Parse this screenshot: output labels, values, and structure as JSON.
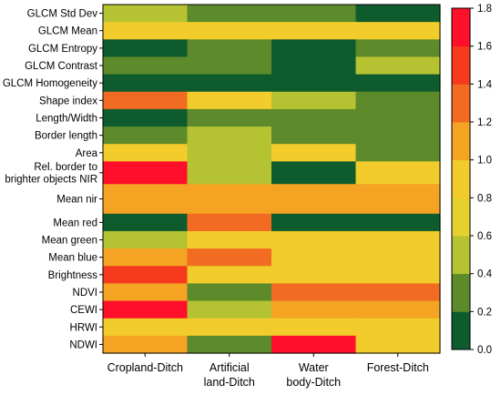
{
  "chart_data": {
    "type": "heatmap",
    "title": "",
    "xlabel": "",
    "ylabel": "",
    "columns": [
      [
        "Cropland-Ditch"
      ],
      [
        "Artificial",
        "land-Ditch"
      ],
      [
        "Water",
        "body-Ditch"
      ],
      [
        "Forest-Ditch"
      ]
    ],
    "rows": [
      [
        "GLCM Std Dev"
      ],
      [
        "GLCM Mean"
      ],
      [
        "GLCM Entropy"
      ],
      [
        "GLCM Contrast"
      ],
      [
        "GLCM Homogeneity"
      ],
      [
        "Shape index"
      ],
      [
        "Length/Width"
      ],
      [
        "Border length"
      ],
      [
        "Area"
      ],
      [
        "Rel. border to",
        "brighter objects NIR"
      ],
      [
        "Mean nir"
      ],
      [
        "Mean red"
      ],
      [
        "Mean green"
      ],
      [
        "Mean blue"
      ],
      [
        "Brightness"
      ],
      [
        "NDVI"
      ],
      [
        "CEWI"
      ],
      [
        "HRWI"
      ],
      [
        "NDWI"
      ]
    ],
    "row_spans": [
      1,
      1,
      1,
      1,
      1,
      1,
      1,
      1,
      1,
      1.3,
      1.7,
      1,
      1,
      1,
      1,
      1,
      1,
      1,
      1
    ],
    "cells": [
      [
        {
          "span": 1,
          "v": 0.5
        },
        {
          "span": 1,
          "v": 0.3
        },
        {
          "span": 1,
          "v": 0.3
        },
        {
          "span": 1,
          "v": 0.1
        }
      ],
      [
        {
          "span": 1,
          "v": 0.9
        },
        {
          "span": 1,
          "v": 0.9
        },
        {
          "span": 1,
          "v": 0.9
        },
        {
          "span": 1,
          "v": 0.9
        }
      ],
      [
        {
          "span": 1,
          "v": 0.1
        },
        {
          "span": 1,
          "v": 0.3
        },
        {
          "span": 1,
          "v": 0.1
        },
        {
          "span": 1,
          "v": 0.3
        }
      ],
      [
        {
          "span": 1,
          "v": 0.3
        },
        {
          "span": 1,
          "v": 0.3
        },
        {
          "span": 1,
          "v": 0.1
        },
        {
          "span": 1,
          "v": 0.5
        }
      ],
      [
        {
          "span": 1,
          "v": 0.1
        },
        {
          "span": 1,
          "v": 0.1
        },
        {
          "span": 1,
          "v": 0.1
        },
        {
          "span": 1,
          "v": 0.1
        }
      ],
      [
        {
          "span": 1,
          "v": 1.3
        },
        {
          "span": 1,
          "v": 0.9
        },
        {
          "span": 1,
          "v": 0.5
        },
        {
          "span": 1,
          "v": 0.3
        }
      ],
      [
        {
          "span": 1,
          "v": 0.1
        },
        {
          "span": 1,
          "v": 0.3
        },
        {
          "span": 1,
          "v": 0.3
        },
        {
          "span": 1,
          "v": 0.3
        }
      ],
      [
        {
          "span": 1,
          "v": 0.3
        },
        {
          "span": 1,
          "v": 0.5
        },
        {
          "span": 1,
          "v": 0.3
        },
        {
          "span": 1,
          "v": 0.3
        }
      ],
      [
        {
          "span": 1,
          "v": 0.9
        },
        {
          "span": 1,
          "v": 0.5
        },
        {
          "span": 1,
          "v": 0.9
        },
        {
          "span": 1,
          "v": 0.3
        }
      ],
      [
        {
          "span": 2,
          "v": 1.7
        },
        {
          "span": 3,
          "v": 0.5
        },
        {
          "span": 1.3,
          "v": 0.1
        },
        {
          "span": 3,
          "v": 0.9
        }
      ],
      [
        {
          "span": 1.7,
          "v": 1.1
        }
      ],
      [
        {
          "span": 1,
          "v": 0.1
        },
        {
          "span": 1,
          "v": 1.3
        },
        {
          "span": 3,
          "v": 0.1
        },
        {
          "span": 2,
          "v": 0.1
        }
      ],
      [
        {
          "span": 1,
          "v": 0.5
        },
        {
          "span": 1,
          "v": 0.9
        }
      ],
      [
        {
          "span": 1,
          "v": 1.1
        },
        {
          "span": 1,
          "v": 1.3
        },
        {
          "span": 6,
          "v": 0.9
        }
      ],
      [
        {
          "span": 1,
          "v": 1.5
        },
        {
          "span": 1,
          "v": 0.9
        },
        {
          "span": 1,
          "v": 0.9
        }
      ],
      [
        {
          "span": 1,
          "v": 1.1
        },
        {
          "span": 1,
          "v": 0.3
        },
        {
          "span": 1,
          "v": 1.3
        }
      ],
      [
        {
          "span": 2,
          "v": 1.7
        },
        {
          "span": 2,
          "v": 0.5
        },
        {
          "span": 1,
          "v": 1.1
        }
      ],
      [
        {
          "span": 1,
          "v": 0.9
        }
      ],
      [
        {
          "span": 1,
          "v": 1.1
        },
        {
          "span": 1,
          "v": 0.3
        },
        {
          "span": 1,
          "v": 1.7
        },
        {
          "span": 1,
          "v": 0.9
        }
      ]
    ],
    "colorbar": {
      "min": 0.0,
      "max": 1.8,
      "ticks": [
        "0.0",
        "0.2",
        "0.4",
        "0.6",
        "0.8",
        "1.0",
        "1.2",
        "1.4",
        "1.6",
        "1.8"
      ],
      "bins": [
        {
          "from": 0.0,
          "to": 0.2,
          "color": "#0e5b2e"
        },
        {
          "from": 0.2,
          "to": 0.4,
          "color": "#5d8a2a"
        },
        {
          "from": 0.4,
          "to": 0.6,
          "color": "#b5c232"
        },
        {
          "from": 0.6,
          "to": 0.8,
          "color": "#e6d22e"
        },
        {
          "from": 0.8,
          "to": 1.0,
          "color": "#f2cc2a"
        },
        {
          "from": 1.0,
          "to": 1.2,
          "color": "#f5a323"
        },
        {
          "from": 1.2,
          "to": 1.4,
          "color": "#f26b22"
        },
        {
          "from": 1.4,
          "to": 1.6,
          "color": "#f53a1e"
        },
        {
          "from": 1.6,
          "to": 1.8,
          "color": "#ff0f2a"
        }
      ]
    }
  }
}
